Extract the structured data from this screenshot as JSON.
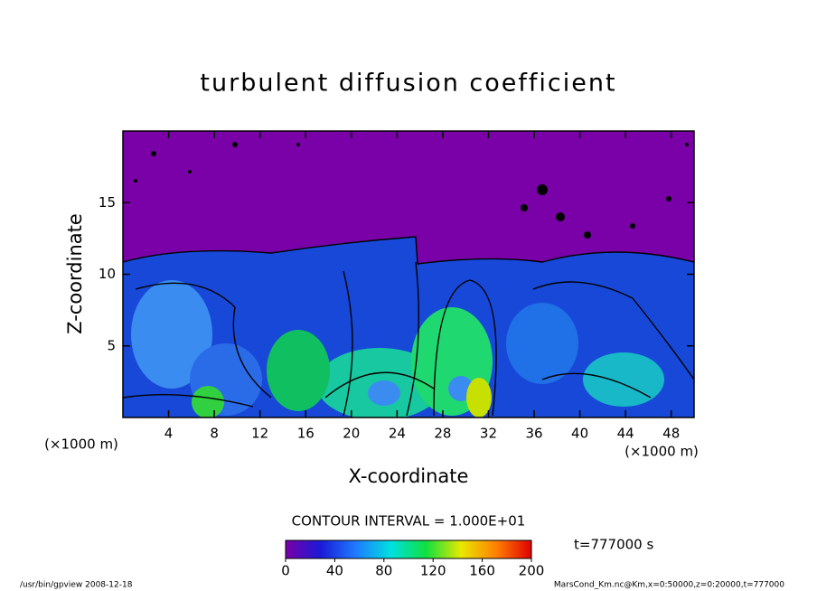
{
  "chart_data": {
    "type": "contour",
    "title": "turbulent diffusion coefficient",
    "x_label": "X-coordinate",
    "y_label": "Z-coordinate",
    "x_unit_label": "(×1000 m)",
    "xlim": [
      0,
      50
    ],
    "xticks": [
      4,
      8,
      12,
      16,
      20,
      24,
      28,
      32,
      36,
      40,
      44,
      48
    ],
    "ylim": [
      0,
      20
    ],
    "yticks": [
      5,
      10,
      15
    ],
    "contour_interval_label": "CONTOUR INTERVAL = 1.000E+01",
    "colorbar": {
      "lim": [
        0,
        200
      ],
      "ticks": [
        0,
        40,
        80,
        120,
        160,
        200
      ],
      "colors": [
        "#7a00a8",
        "#1a1ad8",
        "#1e7bff",
        "#00e0e0",
        "#10e040",
        "#e8e800",
        "#ff8000",
        "#e00000"
      ]
    },
    "time_label": "t=777000 s",
    "footer_left": "/usr/bin/gpview  2008-12-18",
    "footer_right": "MarsCond_Km.nc@Km,x=0:50000,z=0:20000,t=777000"
  }
}
